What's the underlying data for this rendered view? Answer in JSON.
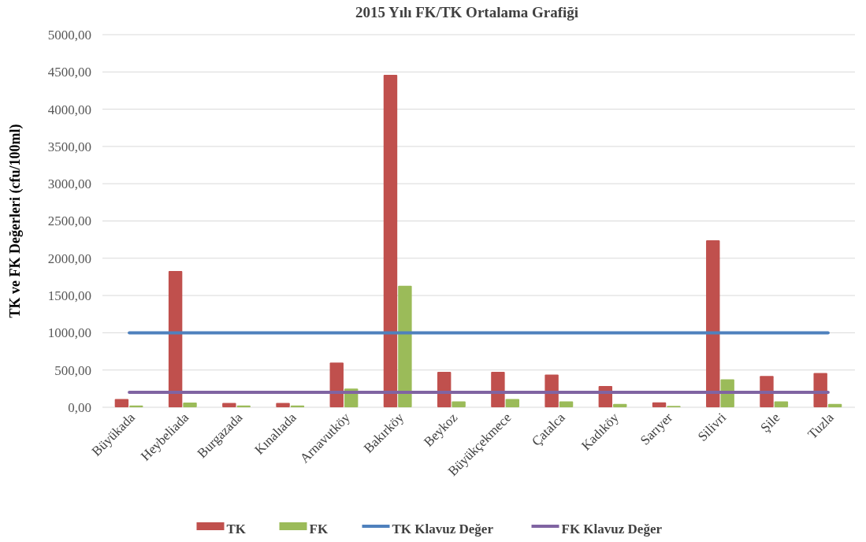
{
  "chart_data": {
    "type": "bar",
    "title": "2015 Yılı FK/TK  Ortalama Grafiği",
    "ylabel": "TK ve FK Değerleri (cfu/100ml)",
    "categories": [
      "Büyükada",
      "Heybeliada",
      "Burgazada",
      "Kınalıada",
      "Arnavutköy",
      "Bakırköy",
      "Beykoz",
      "Büyükçekmece",
      "Çatalca",
      "Kadıköy",
      "Sarıyer",
      "Silivri",
      "Şile",
      "Tuzla"
    ],
    "series": [
      {
        "name": "TK",
        "color": "#c0504d",
        "values": [
          110,
          1830,
          57,
          57,
          600,
          4460,
          475,
          475,
          440,
          285,
          65,
          2240,
          420,
          460
        ]
      },
      {
        "name": "FK",
        "color": "#9bbb59",
        "values": [
          25,
          64,
          25,
          25,
          250,
          1630,
          80,
          110,
          80,
          45,
          18,
          375,
          80,
          45
        ]
      }
    ],
    "ref_lines": [
      {
        "axis": "y",
        "value": 1000,
        "label": "TK Klavuz Değer",
        "color": "#4f81bd"
      },
      {
        "axis": "y",
        "value": 200,
        "label": "FK Klavuz Değer",
        "color": "#8064a2"
      }
    ],
    "ylim": [
      0,
      5000
    ],
    "yticks": [
      {
        "value": 0,
        "label": "0,00"
      },
      {
        "value": 500,
        "label": "500,00"
      },
      {
        "value": 1000,
        "label": "1000,00"
      },
      {
        "value": 1500,
        "label": "1500,00"
      },
      {
        "value": 2000,
        "label": "2000,00"
      },
      {
        "value": 2500,
        "label": "2500,00"
      },
      {
        "value": 3000,
        "label": "3000,00"
      },
      {
        "value": 3500,
        "label": "3500,00"
      },
      {
        "value": 4000,
        "label": "4000,00"
      },
      {
        "value": 4500,
        "label": "4500,00"
      },
      {
        "value": 5000,
        "label": "5000,00"
      }
    ],
    "grid": "y",
    "legend": "bottom"
  }
}
